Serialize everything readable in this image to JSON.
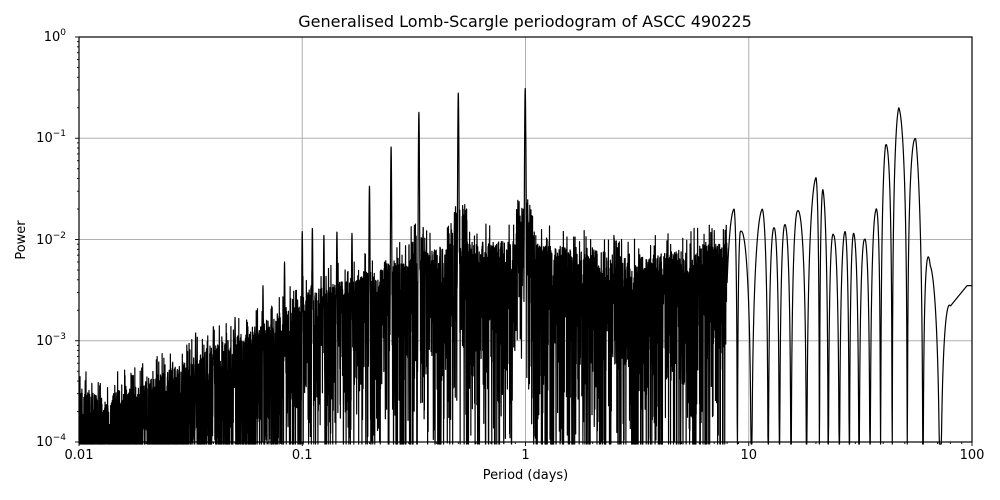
{
  "chart_data": {
    "type": "line",
    "title": "Generalised Lomb-Scargle periodogram of ASCC 490225",
    "xlabel": "Period (days)",
    "ylabel": "Power",
    "xscale": "log",
    "yscale": "log",
    "xlim": [
      0.01,
      100
    ],
    "ylim": [
      0.0001,
      1
    ],
    "grid": true,
    "legend": null,
    "x_ticks": [
      {
        "value": 0.01,
        "label": "0.01"
      },
      {
        "value": 0.1,
        "label": "0.1"
      },
      {
        "value": 1,
        "label": "1"
      },
      {
        "value": 10,
        "label": "10"
      },
      {
        "value": 100,
        "label": "100"
      }
    ],
    "y_ticks": [
      {
        "value": 1,
        "base": "10",
        "exp": "0"
      },
      {
        "value": 0.1,
        "base": "10",
        "exp": "−1"
      },
      {
        "value": 0.01,
        "base": "10",
        "exp": "−2"
      },
      {
        "value": 0.001,
        "base": "10",
        "exp": "−3"
      },
      {
        "value": 0.0001,
        "base": "10",
        "exp": "−4"
      }
    ],
    "noise_envelope": {
      "x": [
        0.01,
        0.013,
        0.02,
        0.03,
        0.05,
        0.08,
        0.1,
        0.2,
        0.3,
        0.5,
        1,
        2,
        3,
        5,
        8
      ],
      "y": [
        0.00022,
        0.00018,
        0.00025,
        0.0004,
        0.0007,
        0.0012,
        0.0018,
        0.003,
        0.004,
        0.006,
        0.006,
        0.005,
        0.004,
        0.005,
        0.006
      ]
    },
    "sharp_peaks": [
      {
        "period": 0.0333,
        "power": 0.0012
      },
      {
        "period": 0.04,
        "power": 0.0014
      },
      {
        "period": 0.05,
        "power": 0.0017
      },
      {
        "period": 0.0667,
        "power": 0.0035
      },
      {
        "period": 0.0833,
        "power": 0.006
      },
      {
        "period": 0.1,
        "power": 0.012
      },
      {
        "period": 0.111,
        "power": 0.013
      },
      {
        "period": 0.125,
        "power": 0.011
      },
      {
        "period": 0.143,
        "power": 0.012
      },
      {
        "period": 0.167,
        "power": 0.0115
      },
      {
        "period": 0.2,
        "power": 0.034
      },
      {
        "period": 0.25,
        "power": 0.082
      },
      {
        "period": 0.333,
        "power": 0.18
      },
      {
        "period": 0.5,
        "power": 0.28
      },
      {
        "period": 0.997,
        "power": 0.31
      },
      {
        "period": 1.0,
        "power": 0.15
      }
    ],
    "long_period_lobes": [
      {
        "period": 5.5,
        "power": 0.018
      },
      {
        "period": 6.0,
        "power": 0.02
      },
      {
        "period": 7.0,
        "power": 0.016
      },
      {
        "period": 8.6,
        "power": 0.02
      },
      {
        "period": 9.2,
        "power": 0.012
      },
      {
        "period": 11.5,
        "power": 0.02
      },
      {
        "period": 13.0,
        "power": 0.013
      },
      {
        "period": 14.5,
        "power": 0.014
      },
      {
        "period": 16.5,
        "power": 0.019
      },
      {
        "period": 20.0,
        "power": 0.041
      },
      {
        "period": 21.5,
        "power": 0.031
      },
      {
        "period": 24.0,
        "power": 0.011
      },
      {
        "period": 27.0,
        "power": 0.012
      },
      {
        "period": 29.5,
        "power": 0.0115
      },
      {
        "period": 33.0,
        "power": 0.01
      },
      {
        "period": 37.0,
        "power": 0.019
      },
      {
        "period": 41.0,
        "power": 0.085
      },
      {
        "period": 47.0,
        "power": 0.2
      },
      {
        "period": 56.0,
        "power": 0.098
      },
      {
        "period": 65.0,
        "power": 0.0055
      },
      {
        "period": 80.0,
        "power": 0.0022
      },
      {
        "period": 95.0,
        "power": 0.0035
      }
    ],
    "dominant_peak": {
      "period": 1.0,
      "power": 0.31
    }
  },
  "colors": {
    "line": "#000000",
    "grid": "#b0b0b0",
    "axes": "#000000",
    "background": "#ffffff"
  }
}
